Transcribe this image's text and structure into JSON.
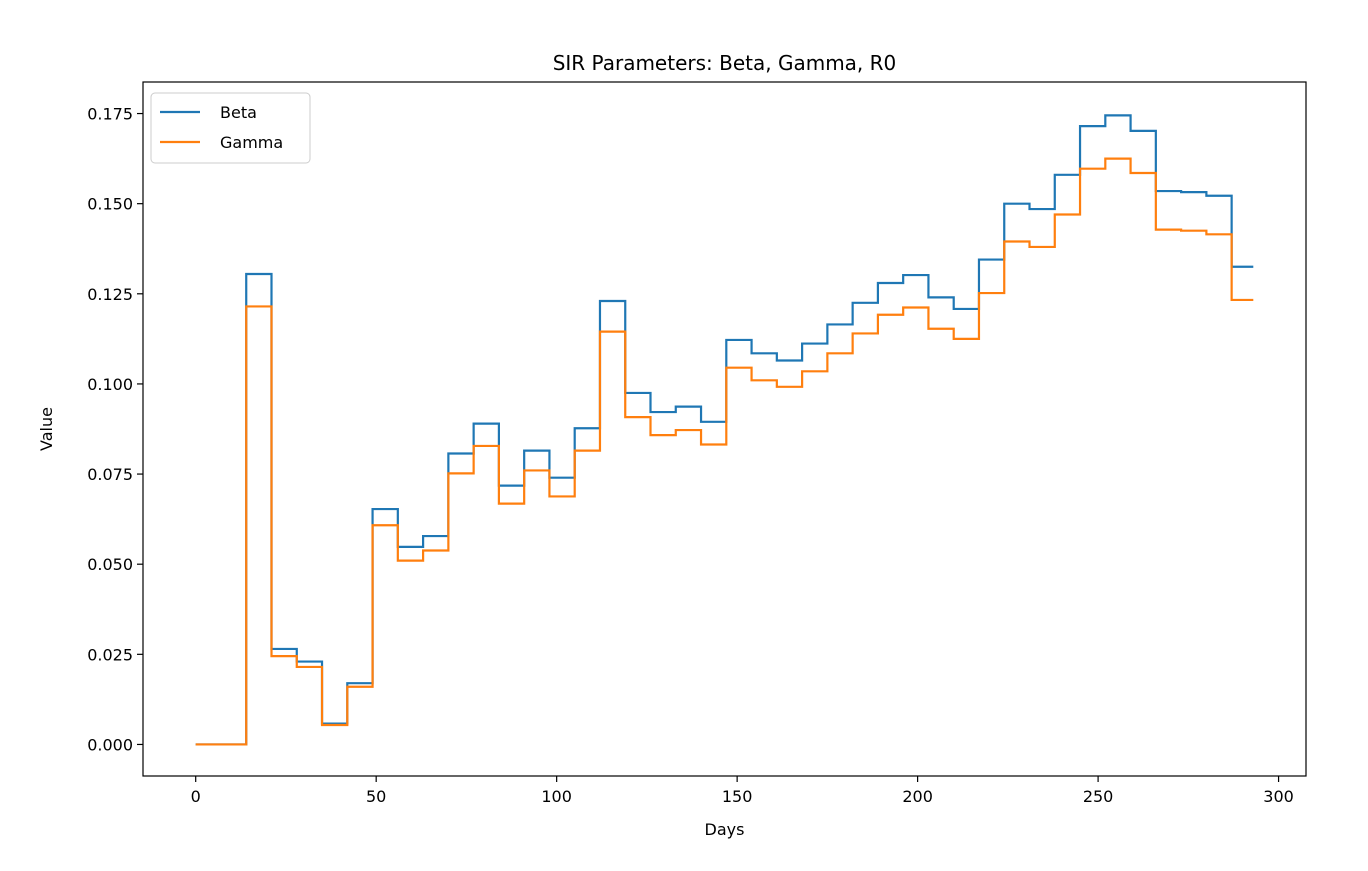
{
  "chart_data": {
    "type": "line",
    "title": "SIR Parameters: Beta, Gamma, R0",
    "xlabel": "Days",
    "ylabel": "Value",
    "xlim": [
      -14.6,
      307.6
    ],
    "ylim": [
      -0.00875,
      0.18375
    ],
    "xticks": [
      0,
      50,
      100,
      150,
      200,
      250,
      300
    ],
    "xtick_labels": [
      "0",
      "50",
      "100",
      "150",
      "200",
      "250",
      "300"
    ],
    "yticks": [
      0.0,
      0.025,
      0.05,
      0.075,
      0.1,
      0.125,
      0.15,
      0.175
    ],
    "ytick_labels": [
      "0.000",
      "0.025",
      "0.050",
      "0.075",
      "0.100",
      "0.125",
      "0.150",
      "0.175"
    ],
    "grid": false,
    "legend_position": "upper left",
    "step": 7,
    "x_end": 293,
    "series": [
      {
        "name": "Beta",
        "color": "#1f77b4",
        "values": [
          0.0,
          0.0,
          0.1305,
          0.0265,
          0.023,
          0.0058,
          0.017,
          0.0653,
          0.0548,
          0.0578,
          0.0807,
          0.089,
          0.0718,
          0.0815,
          0.074,
          0.0877,
          0.123,
          0.0975,
          0.0922,
          0.0937,
          0.0895,
          0.1122,
          0.1085,
          0.1065,
          0.1112,
          0.1165,
          0.1225,
          0.128,
          0.1302,
          0.124,
          0.1208,
          0.1345,
          0.15,
          0.1485,
          0.158,
          0.1715,
          0.1745,
          0.1702,
          0.1535,
          0.1532,
          0.1522,
          0.1325
        ]
      },
      {
        "name": "Gamma",
        "color": "#ff7f0e",
        "values": [
          0.0,
          0.0,
          0.1215,
          0.0245,
          0.0215,
          0.0054,
          0.016,
          0.0608,
          0.051,
          0.0538,
          0.0752,
          0.0828,
          0.0668,
          0.076,
          0.0688,
          0.0815,
          0.1145,
          0.0908,
          0.0858,
          0.0872,
          0.0832,
          0.1045,
          0.101,
          0.0992,
          0.1035,
          0.1085,
          0.114,
          0.1192,
          0.1212,
          0.1153,
          0.1125,
          0.1252,
          0.1395,
          0.138,
          0.147,
          0.1597,
          0.1625,
          0.1585,
          0.1428,
          0.1425,
          0.1415,
          0.1233
        ]
      }
    ]
  }
}
